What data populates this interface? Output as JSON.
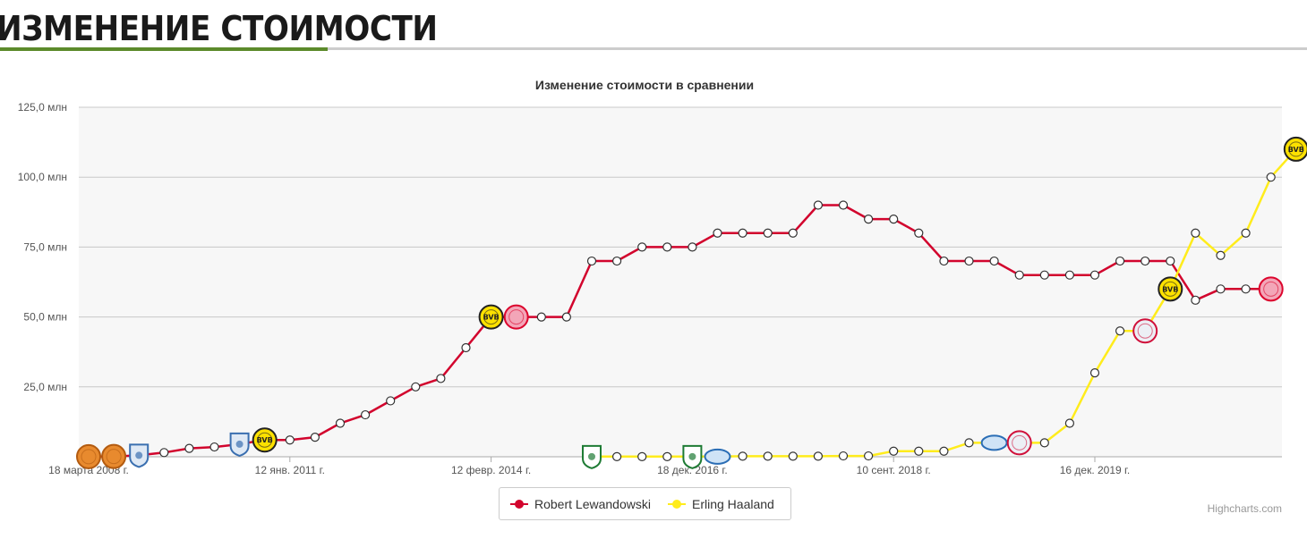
{
  "section": {
    "title": "ИЗМЕНЕНИЕ СТОИМОСТИ"
  },
  "credits": "Highcharts.com",
  "colors": {
    "lewandowski": "#d2042d",
    "haaland": "#ffec1c",
    "accent": "#5c8a2b"
  },
  "chart_data": {
    "type": "line",
    "title": "Изменение стоимости в сравнении",
    "y_ticks": [
      "",
      "25,0 млн",
      "50,0 млн",
      "75,0 млн",
      "100,0 млн",
      "125,0 млн"
    ],
    "ylim": [
      0,
      125
    ],
    "x_ticks": [
      {
        "label": "18 марта 2008 г.",
        "index": 0
      },
      {
        "label": "12 янв. 2011 г.",
        "index": 8
      },
      {
        "label": "12 февр. 2014 г.",
        "index": 16
      },
      {
        "label": "18 дек. 2016 г.",
        "index": 24
      },
      {
        "label": "10 сент. 2018 г.",
        "index": 32
      },
      {
        "label": "16 дек. 2019 г.",
        "index": 40
      }
    ],
    "grid": true,
    "legend_position": "bottom-center",
    "series": [
      {
        "name": "Robert Lewandowski",
        "color": "#d2042d",
        "values": [
          0.05,
          0.1,
          0.5,
          1.5,
          3,
          3.5,
          4.5,
          6,
          6,
          7,
          12,
          15,
          20,
          25,
          28,
          39,
          50,
          50,
          50,
          50,
          70,
          70,
          75,
          75,
          75,
          80,
          80,
          80,
          80,
          90,
          90,
          85,
          85,
          80,
          70,
          70,
          70,
          65,
          65,
          65,
          65,
          70,
          70,
          70,
          56,
          60,
          60,
          60
        ],
        "club_logos": [
          {
            "index": 0,
            "club": "Znicz Pruszkow"
          },
          {
            "index": 1,
            "club": "Znicz Pruszkow"
          },
          {
            "index": 2,
            "club": "Lech Poznan"
          },
          {
            "index": 6,
            "club": "Lech Poznan"
          },
          {
            "index": 7,
            "club": "Borussia Dortmund"
          },
          {
            "index": 16,
            "club": "Borussia Dortmund"
          },
          {
            "index": 17,
            "club": "Bayern Munich"
          },
          {
            "index": 47,
            "club": "Bayern Munich"
          }
        ]
      },
      {
        "name": "Erling Haaland",
        "color": "#ffec1c",
        "values": [
          null,
          null,
          null,
          null,
          null,
          null,
          null,
          null,
          null,
          null,
          null,
          null,
          null,
          null,
          null,
          null,
          null,
          null,
          null,
          null,
          0.05,
          0.05,
          0.05,
          0.05,
          0.05,
          0.05,
          0.2,
          0.2,
          0.2,
          0.2,
          0.3,
          0.3,
          2,
          2,
          2,
          5,
          5,
          5,
          5,
          12,
          30,
          45,
          45,
          60,
          80,
          72,
          80,
          100,
          110
        ],
        "start_index": 20,
        "club_logos": [
          {
            "index": 20,
            "club": "Bryne FK"
          },
          {
            "index": 24,
            "club": "Bryne FK"
          },
          {
            "index": 25,
            "club": "Molde FK"
          },
          {
            "index": 36,
            "club": "Molde FK"
          },
          {
            "index": 37,
            "club": "Red Bull Salzburg"
          },
          {
            "index": 42,
            "club": "Red Bull Salzburg"
          },
          {
            "index": 43,
            "club": "Borussia Dortmund"
          },
          {
            "index": 48,
            "club": "Borussia Dortmund"
          }
        ]
      }
    ]
  }
}
